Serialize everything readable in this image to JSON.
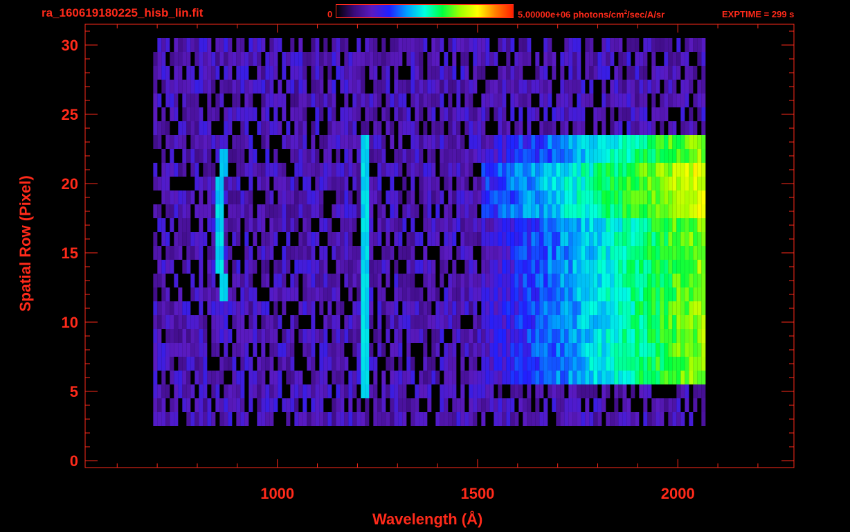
{
  "header": {
    "filename": "ra_160619180225_hisb_lin.fit",
    "colorbar_min": "0",
    "colorbar_max_prefix": "5.00000e+06 photons/cm",
    "colorbar_max_sup": "2",
    "colorbar_max_suffix": "/sec/A/sr",
    "exptime": "EXPTIME = 299 s"
  },
  "colors": {
    "axis": "#ff2a1a",
    "background": "#000000",
    "colormap": [
      "#000000",
      "#3a0a7a",
      "#5a1ac0",
      "#2020ff",
      "#00a0ff",
      "#00ffe0",
      "#00ff40",
      "#a0ff00",
      "#ffff00",
      "#ff8000",
      "#ff2000"
    ]
  },
  "chart_data": {
    "type": "heatmap",
    "title": "ra_160619180225_hisb_lin.fit",
    "xlabel": "Wavelength (Å)",
    "ylabel": "Spatial Row (Pixel)",
    "xlim": [
      520,
      2290
    ],
    "ylim": [
      -0.5,
      31.5
    ],
    "x_ticks": [
      1000,
      1500,
      2000
    ],
    "y_ticks": [
      0,
      5,
      10,
      15,
      20,
      25,
      30
    ],
    "colorbar_range": [
      0,
      5000000
    ],
    "colorbar_units": "photons/cm^2/sec/A/sr",
    "features": [
      {
        "name": "emission arc",
        "x_range": [
          850,
          905
        ],
        "rows": [
          12,
          22
        ],
        "level": 0.45
      },
      {
        "name": "Ly-alpha line",
        "x": 1216,
        "rows": [
          5,
          23
        ],
        "level": 0.45
      },
      {
        "name": "continuum",
        "x_range": [
          1500,
          2060
        ],
        "rows": [
          6,
          23
        ],
        "peak_level": 0.7
      }
    ],
    "data_extent": {
      "x": [
        690,
        2065
      ],
      "rows": [
        3,
        30
      ]
    }
  }
}
